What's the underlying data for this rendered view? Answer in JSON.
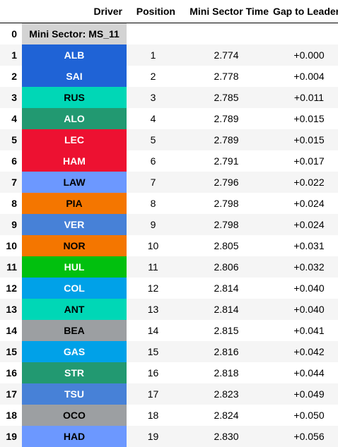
{
  "columns": [
    "Driver",
    "Position",
    "Mini Sector Time",
    "Gap to Leader"
  ],
  "rows": [
    {
      "index": "0",
      "driver": "Mini Sector: MS_11",
      "position": "",
      "time": "",
      "gap": "",
      "bg": "#d3d3d3",
      "fg": "#000000"
    },
    {
      "index": "1",
      "driver": "ALB",
      "position": "1",
      "time": "2.774",
      "gap": "+0.000",
      "bg": "#1f63d6",
      "fg": "#ffffff"
    },
    {
      "index": "2",
      "driver": "SAI",
      "position": "2",
      "time": "2.778",
      "gap": "+0.004",
      "bg": "#1f63d6",
      "fg": "#ffffff"
    },
    {
      "index": "3",
      "driver": "RUS",
      "position": "3",
      "time": "2.785",
      "gap": "+0.011",
      "bg": "#00d7b6",
      "fg": "#000000"
    },
    {
      "index": "4",
      "driver": "ALO",
      "position": "4",
      "time": "2.789",
      "gap": "+0.015",
      "bg": "#229971",
      "fg": "#ffffff"
    },
    {
      "index": "5",
      "driver": "LEC",
      "position": "5",
      "time": "2.789",
      "gap": "+0.015",
      "bg": "#ed1131",
      "fg": "#ffffff"
    },
    {
      "index": "6",
      "driver": "HAM",
      "position": "6",
      "time": "2.791",
      "gap": "+0.017",
      "bg": "#ed1131",
      "fg": "#ffffff"
    },
    {
      "index": "7",
      "driver": "LAW",
      "position": "7",
      "time": "2.796",
      "gap": "+0.022",
      "bg": "#6c98ff",
      "fg": "#000000"
    },
    {
      "index": "8",
      "driver": "PIA",
      "position": "8",
      "time": "2.798",
      "gap": "+0.024",
      "bg": "#f47600",
      "fg": "#000000"
    },
    {
      "index": "9",
      "driver": "VER",
      "position": "9",
      "time": "2.798",
      "gap": "+0.024",
      "bg": "#4781d7",
      "fg": "#ffffff"
    },
    {
      "index": "10",
      "driver": "NOR",
      "position": "10",
      "time": "2.805",
      "gap": "+0.031",
      "bg": "#f47600",
      "fg": "#000000"
    },
    {
      "index": "11",
      "driver": "HUL",
      "position": "11",
      "time": "2.806",
      "gap": "+0.032",
      "bg": "#01c00e",
      "fg": "#ffffff"
    },
    {
      "index": "12",
      "driver": "COL",
      "position": "12",
      "time": "2.814",
      "gap": "+0.040",
      "bg": "#00a1e8",
      "fg": "#ffffff"
    },
    {
      "index": "13",
      "driver": "ANT",
      "position": "13",
      "time": "2.814",
      "gap": "+0.040",
      "bg": "#00d7b6",
      "fg": "#000000"
    },
    {
      "index": "14",
      "driver": "BEA",
      "position": "14",
      "time": "2.815",
      "gap": "+0.041",
      "bg": "#9c9fa2",
      "fg": "#000000"
    },
    {
      "index": "15",
      "driver": "GAS",
      "position": "15",
      "time": "2.816",
      "gap": "+0.042",
      "bg": "#00a1e8",
      "fg": "#ffffff"
    },
    {
      "index": "16",
      "driver": "STR",
      "position": "16",
      "time": "2.818",
      "gap": "+0.044",
      "bg": "#229971",
      "fg": "#ffffff"
    },
    {
      "index": "17",
      "driver": "TSU",
      "position": "17",
      "time": "2.823",
      "gap": "+0.049",
      "bg": "#4781d7",
      "fg": "#ffffff"
    },
    {
      "index": "18",
      "driver": "OCO",
      "position": "18",
      "time": "2.824",
      "gap": "+0.050",
      "bg": "#9c9fa2",
      "fg": "#000000"
    },
    {
      "index": "19",
      "driver": "HAD",
      "position": "19",
      "time": "2.830",
      "gap": "+0.056",
      "bg": "#6c98ff",
      "fg": "#000000"
    }
  ]
}
